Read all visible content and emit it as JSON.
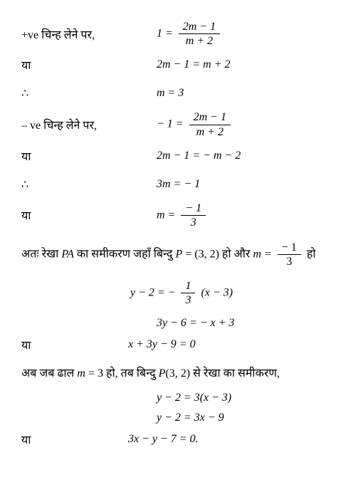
{
  "lines": {
    "l1_label": "+ve चिन्ह लेने पर,",
    "l1_lhs": "1 =",
    "l1_num": "2m − 1",
    "l1_den": "m + 2",
    "l2_label": "या",
    "l2_eq": "2m − 1 = m + 2",
    "l3_label": "∴",
    "l3_eq": "m = 3",
    "l4_label": "– ve चिन्ह लेने पर,",
    "l4_lhs": "− 1 =",
    "l4_num": "2m − 1",
    "l4_den": "m + 2",
    "l5_label": "या",
    "l5_eq": "2m − 1 = − m − 2",
    "l6_label": "∴",
    "l6_eq": "3m = − 1",
    "l7_label": "या",
    "l7_lhs": "m =",
    "l7_num": "− 1",
    "l7_den": "3"
  },
  "para1_a": "अतः रेखा ",
  "para1_b": "PA",
  "para1_c": " का समीकरण जहाँ बिन्दु ",
  "para1_d": "P",
  "para1_e": " = (3, 2) हो और ",
  "para1_f": "m = ",
  "para1_num": "− 1",
  "para1_den": "3",
  "para1_g": " हो",
  "eqA_lhs": "y − 2 = −",
  "eqA_num": "1",
  "eqA_den": "3",
  "eqA_rhs": "(x − 3)",
  "eqB": "3y − 6 = − x + 3",
  "eqC_label": "या",
  "eqC": "x + 3y − 9 = 0",
  "para2_a": "अब जब ढाल ",
  "para2_b": "m",
  "para2_c": " = 3 हो, तब बिन्दु ",
  "para2_d": "P",
  "para2_e": "(3, 2) से रेखा का समीकरण,",
  "eqD": "y − 2 = 3(x − 3)",
  "eqE": "y − 2 = 3x − 9",
  "eqF_label": "या",
  "eqF": "3x − y − 7 = 0."
}
